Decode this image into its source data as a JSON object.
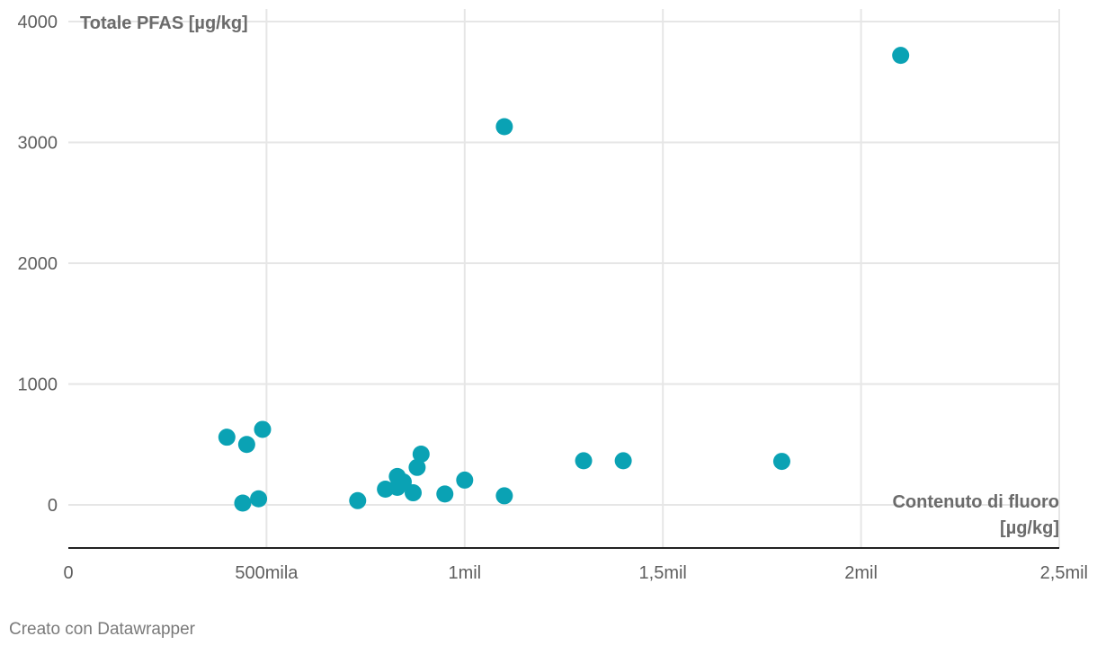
{
  "chart_data": {
    "type": "scatter",
    "xlabel_lines": [
      "Contenuto di fluoro",
      "[µg/kg]"
    ],
    "ylabel": "Totale PFAS [µg/kg]",
    "xlim": [
      0,
      2500000
    ],
    "ylim": [
      -350,
      4100
    ],
    "x_ticks": [
      {
        "value": 0,
        "label": "0"
      },
      {
        "value": 500000,
        "label": "500mila"
      },
      {
        "value": 1000000,
        "label": "1mil"
      },
      {
        "value": 1500000,
        "label": "1,5mil"
      },
      {
        "value": 2000000,
        "label": "2mil"
      },
      {
        "value": 2500000,
        "label": "2,5mil"
      }
    ],
    "y_ticks": [
      {
        "value": 0,
        "label": "0"
      },
      {
        "value": 1000,
        "label": "1000"
      },
      {
        "value": 2000,
        "label": "2000"
      },
      {
        "value": 3000,
        "label": "3000"
      },
      {
        "value": 4000,
        "label": "4000"
      }
    ],
    "grid": true,
    "point_color": "#0aa2b4",
    "points": [
      {
        "x": 400000,
        "y": 560
      },
      {
        "x": 450000,
        "y": 500
      },
      {
        "x": 490000,
        "y": 625
      },
      {
        "x": 440000,
        "y": 15
      },
      {
        "x": 480000,
        "y": 50
      },
      {
        "x": 730000,
        "y": 35
      },
      {
        "x": 800000,
        "y": 130
      },
      {
        "x": 830000,
        "y": 145
      },
      {
        "x": 830000,
        "y": 235
      },
      {
        "x": 845000,
        "y": 190
      },
      {
        "x": 870000,
        "y": 100
      },
      {
        "x": 880000,
        "y": 310
      },
      {
        "x": 890000,
        "y": 420
      },
      {
        "x": 950000,
        "y": 90
      },
      {
        "x": 1000000,
        "y": 205
      },
      {
        "x": 1100000,
        "y": 75
      },
      {
        "x": 1100000,
        "y": 3130
      },
      {
        "x": 1300000,
        "y": 365
      },
      {
        "x": 1400000,
        "y": 365
      },
      {
        "x": 1800000,
        "y": 360
      },
      {
        "x": 2100000,
        "y": 3720
      }
    ]
  },
  "footer": {
    "credit": "Creato con Datawrapper"
  }
}
